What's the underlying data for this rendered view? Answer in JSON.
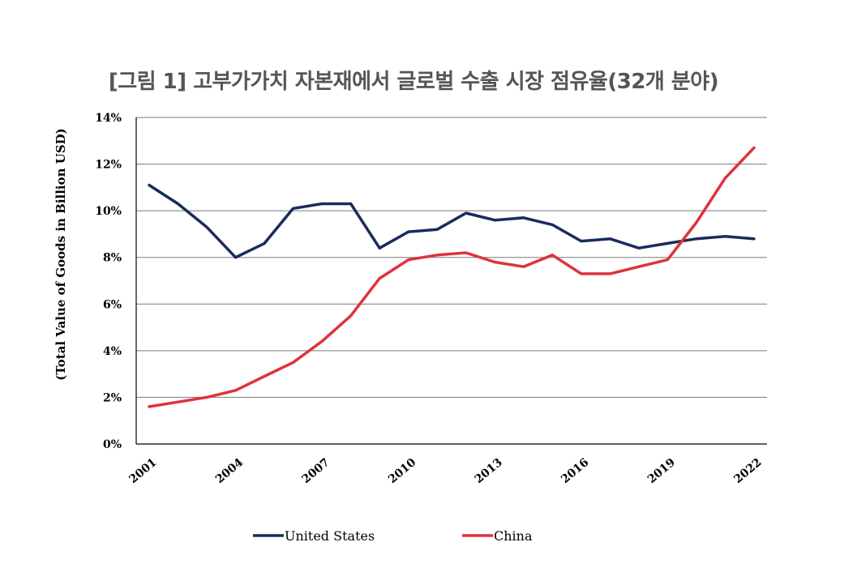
{
  "chart_data": {
    "type": "line",
    "title": "[그림 1] 고부가가치 자본재에서 글로벌 수출 시장 점유율(32개 분야)",
    "xlabel": "",
    "ylabel": "(Total Value of Goods in Billion USD)",
    "x": [
      2001,
      2002,
      2003,
      2004,
      2005,
      2006,
      2007,
      2008,
      2009,
      2010,
      2011,
      2012,
      2013,
      2014,
      2015,
      2016,
      2017,
      2018,
      2019,
      2020,
      2021,
      2022
    ],
    "x_ticks": [
      "2001",
      "2004",
      "2007",
      "2010",
      "2013",
      "2016",
      "2019",
      "2022"
    ],
    "y_ticks": [
      "0%",
      "2%",
      "4%",
      "6%",
      "8%",
      "10%",
      "12%",
      "14%"
    ],
    "ylim": [
      0,
      14
    ],
    "grid": true,
    "legend_position": "bottom",
    "series": [
      {
        "name": "United States",
        "color": "#1a2b5e",
        "values": [
          11.1,
          10.3,
          9.3,
          8.0,
          8.6,
          10.1,
          10.3,
          10.3,
          8.4,
          9.1,
          9.2,
          9.9,
          9.6,
          9.7,
          9.4,
          8.7,
          8.8,
          8.4,
          8.6,
          8.8,
          8.9,
          8.8
        ]
      },
      {
        "name": "China",
        "color": "#e0323c",
        "values": [
          1.6,
          1.8,
          2.0,
          2.3,
          2.9,
          3.5,
          4.4,
          5.5,
          7.1,
          7.9,
          8.1,
          8.2,
          7.8,
          7.6,
          8.1,
          7.3,
          7.3,
          7.6,
          7.9,
          9.5,
          11.4,
          12.7
        ]
      }
    ]
  }
}
